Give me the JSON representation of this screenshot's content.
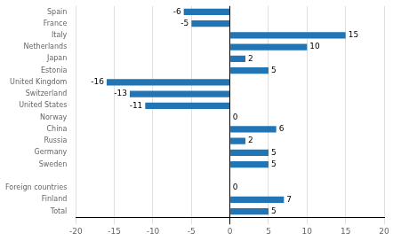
{
  "chart_data": {
    "type": "bar",
    "orientation": "horizontal",
    "categories": [
      "Spain",
      "France",
      "Italy",
      "Netherlands",
      "Japan",
      "Estonia",
      "United Kingdom",
      "Switzerland",
      "United States",
      "Norway",
      "China",
      "Russia",
      "Germany",
      "Sweden",
      null,
      "Foreign countries",
      "Finland",
      "Total"
    ],
    "values": [
      -6,
      -5,
      15,
      10,
      2,
      5,
      -16,
      -13,
      -11,
      0,
      6,
      2,
      5,
      5,
      null,
      0,
      7,
      5
    ],
    "color": "#2175b5",
    "xlim": [
      -20,
      20
    ],
    "xticks": [
      -20,
      -15,
      -10,
      -5,
      0,
      5,
      10,
      15,
      20
    ],
    "grid": true,
    "data_labels": true
  }
}
